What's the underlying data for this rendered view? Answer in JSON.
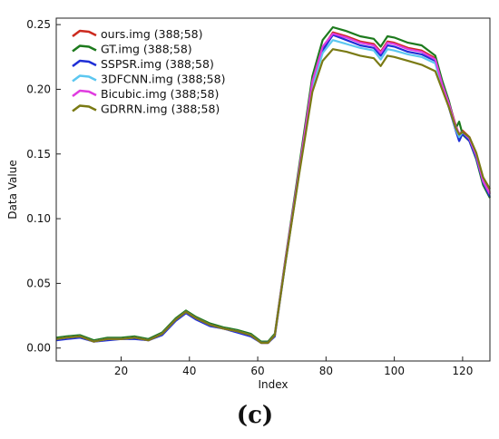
{
  "chart_data": {
    "type": "line",
    "xlabel": "Index",
    "ylabel": "Data Value",
    "xlim": [
      1,
      128
    ],
    "ylim": [
      -0.01,
      0.255
    ],
    "xticks": [
      20,
      40,
      60,
      80,
      100,
      120
    ],
    "yticks": [
      0.0,
      0.05,
      0.1,
      0.15,
      0.2,
      0.25
    ],
    "ytick_labels": [
      "0.00",
      "0.05",
      "0.10",
      "0.15",
      "0.20",
      "0.25"
    ],
    "grid": false,
    "legend_position": "top-left",
    "caption": "(c)",
    "colors": {
      "ours": "#cc2a1e",
      "gt": "#1d7a1d",
      "sspsr": "#1f2fd6",
      "3dfcnn": "#5cc7f0",
      "bicubic": "#e03ce0",
      "gdrrn": "#7a7a14"
    },
    "x": [
      1,
      4,
      8,
      12,
      16,
      20,
      24,
      28,
      32,
      36,
      39,
      42,
      46,
      50,
      54,
      58,
      61,
      63,
      65,
      68,
      72,
      76,
      79,
      82,
      86,
      90,
      94,
      96,
      98,
      100,
      104,
      108,
      112,
      114,
      116,
      118,
      119,
      120,
      122,
      124,
      126,
      128
    ],
    "series": [
      {
        "key": "ours",
        "name": "ours.img (388;58)",
        "values": [
          0.007,
          0.008,
          0.009,
          0.005,
          0.007,
          0.007,
          0.008,
          0.006,
          0.011,
          0.022,
          0.028,
          0.023,
          0.018,
          0.015,
          0.013,
          0.01,
          0.004,
          0.004,
          0.01,
          0.065,
          0.135,
          0.205,
          0.232,
          0.244,
          0.241,
          0.237,
          0.235,
          0.229,
          0.237,
          0.236,
          0.232,
          0.23,
          0.224,
          0.205,
          0.19,
          0.172,
          0.165,
          0.168,
          0.163,
          0.15,
          0.13,
          0.12
        ]
      },
      {
        "key": "gt",
        "name": "GT.img (388;58)",
        "values": [
          0.008,
          0.009,
          0.01,
          0.006,
          0.008,
          0.008,
          0.009,
          0.007,
          0.012,
          0.023,
          0.029,
          0.024,
          0.019,
          0.016,
          0.014,
          0.011,
          0.005,
          0.005,
          0.011,
          0.067,
          0.138,
          0.21,
          0.238,
          0.248,
          0.245,
          0.241,
          0.239,
          0.233,
          0.241,
          0.24,
          0.236,
          0.234,
          0.226,
          0.207,
          0.191,
          0.17,
          0.175,
          0.165,
          0.16,
          0.146,
          0.126,
          0.116
        ]
      },
      {
        "key": "sspsr",
        "name": "SSPSR.img (388;58)",
        "values": [
          0.006,
          0.007,
          0.008,
          0.005,
          0.006,
          0.007,
          0.007,
          0.006,
          0.01,
          0.021,
          0.027,
          0.022,
          0.017,
          0.015,
          0.012,
          0.009,
          0.004,
          0.004,
          0.009,
          0.064,
          0.133,
          0.203,
          0.23,
          0.242,
          0.238,
          0.234,
          0.232,
          0.226,
          0.234,
          0.233,
          0.229,
          0.227,
          0.222,
          0.203,
          0.186,
          0.168,
          0.16,
          0.166,
          0.16,
          0.147,
          0.128,
          0.117
        ]
      },
      {
        "key": "3dfcnn",
        "name": "3DFCNN.img (388;58)",
        "values": [
          0.007,
          0.008,
          0.009,
          0.005,
          0.007,
          0.007,
          0.008,
          0.006,
          0.011,
          0.022,
          0.028,
          0.023,
          0.018,
          0.015,
          0.013,
          0.01,
          0.004,
          0.004,
          0.01,
          0.065,
          0.134,
          0.202,
          0.228,
          0.238,
          0.235,
          0.232,
          0.23,
          0.223,
          0.231,
          0.23,
          0.227,
          0.225,
          0.22,
          0.202,
          0.187,
          0.169,
          0.163,
          0.167,
          0.162,
          0.149,
          0.129,
          0.119
        ]
      },
      {
        "key": "bicubic",
        "name": "Bicubic.img (388;58)",
        "values": [
          0.007,
          0.008,
          0.009,
          0.005,
          0.007,
          0.007,
          0.008,
          0.006,
          0.011,
          0.022,
          0.028,
          0.023,
          0.018,
          0.015,
          0.013,
          0.01,
          0.004,
          0.004,
          0.01,
          0.066,
          0.135,
          0.206,
          0.233,
          0.243,
          0.24,
          0.236,
          0.234,
          0.228,
          0.236,
          0.235,
          0.231,
          0.229,
          0.223,
          0.204,
          0.189,
          0.171,
          0.166,
          0.167,
          0.162,
          0.149,
          0.129,
          0.119
        ]
      },
      {
        "key": "gdrrn",
        "name": "GDRRN.img (388;58)",
        "values": [
          0.007,
          0.008,
          0.009,
          0.005,
          0.007,
          0.007,
          0.008,
          0.006,
          0.011,
          0.022,
          0.028,
          0.023,
          0.018,
          0.015,
          0.013,
          0.01,
          0.004,
          0.004,
          0.01,
          0.064,
          0.132,
          0.198,
          0.222,
          0.231,
          0.229,
          0.226,
          0.224,
          0.218,
          0.226,
          0.225,
          0.222,
          0.219,
          0.214,
          0.2,
          0.186,
          0.17,
          0.165,
          0.167,
          0.163,
          0.151,
          0.132,
          0.123
        ]
      }
    ]
  }
}
